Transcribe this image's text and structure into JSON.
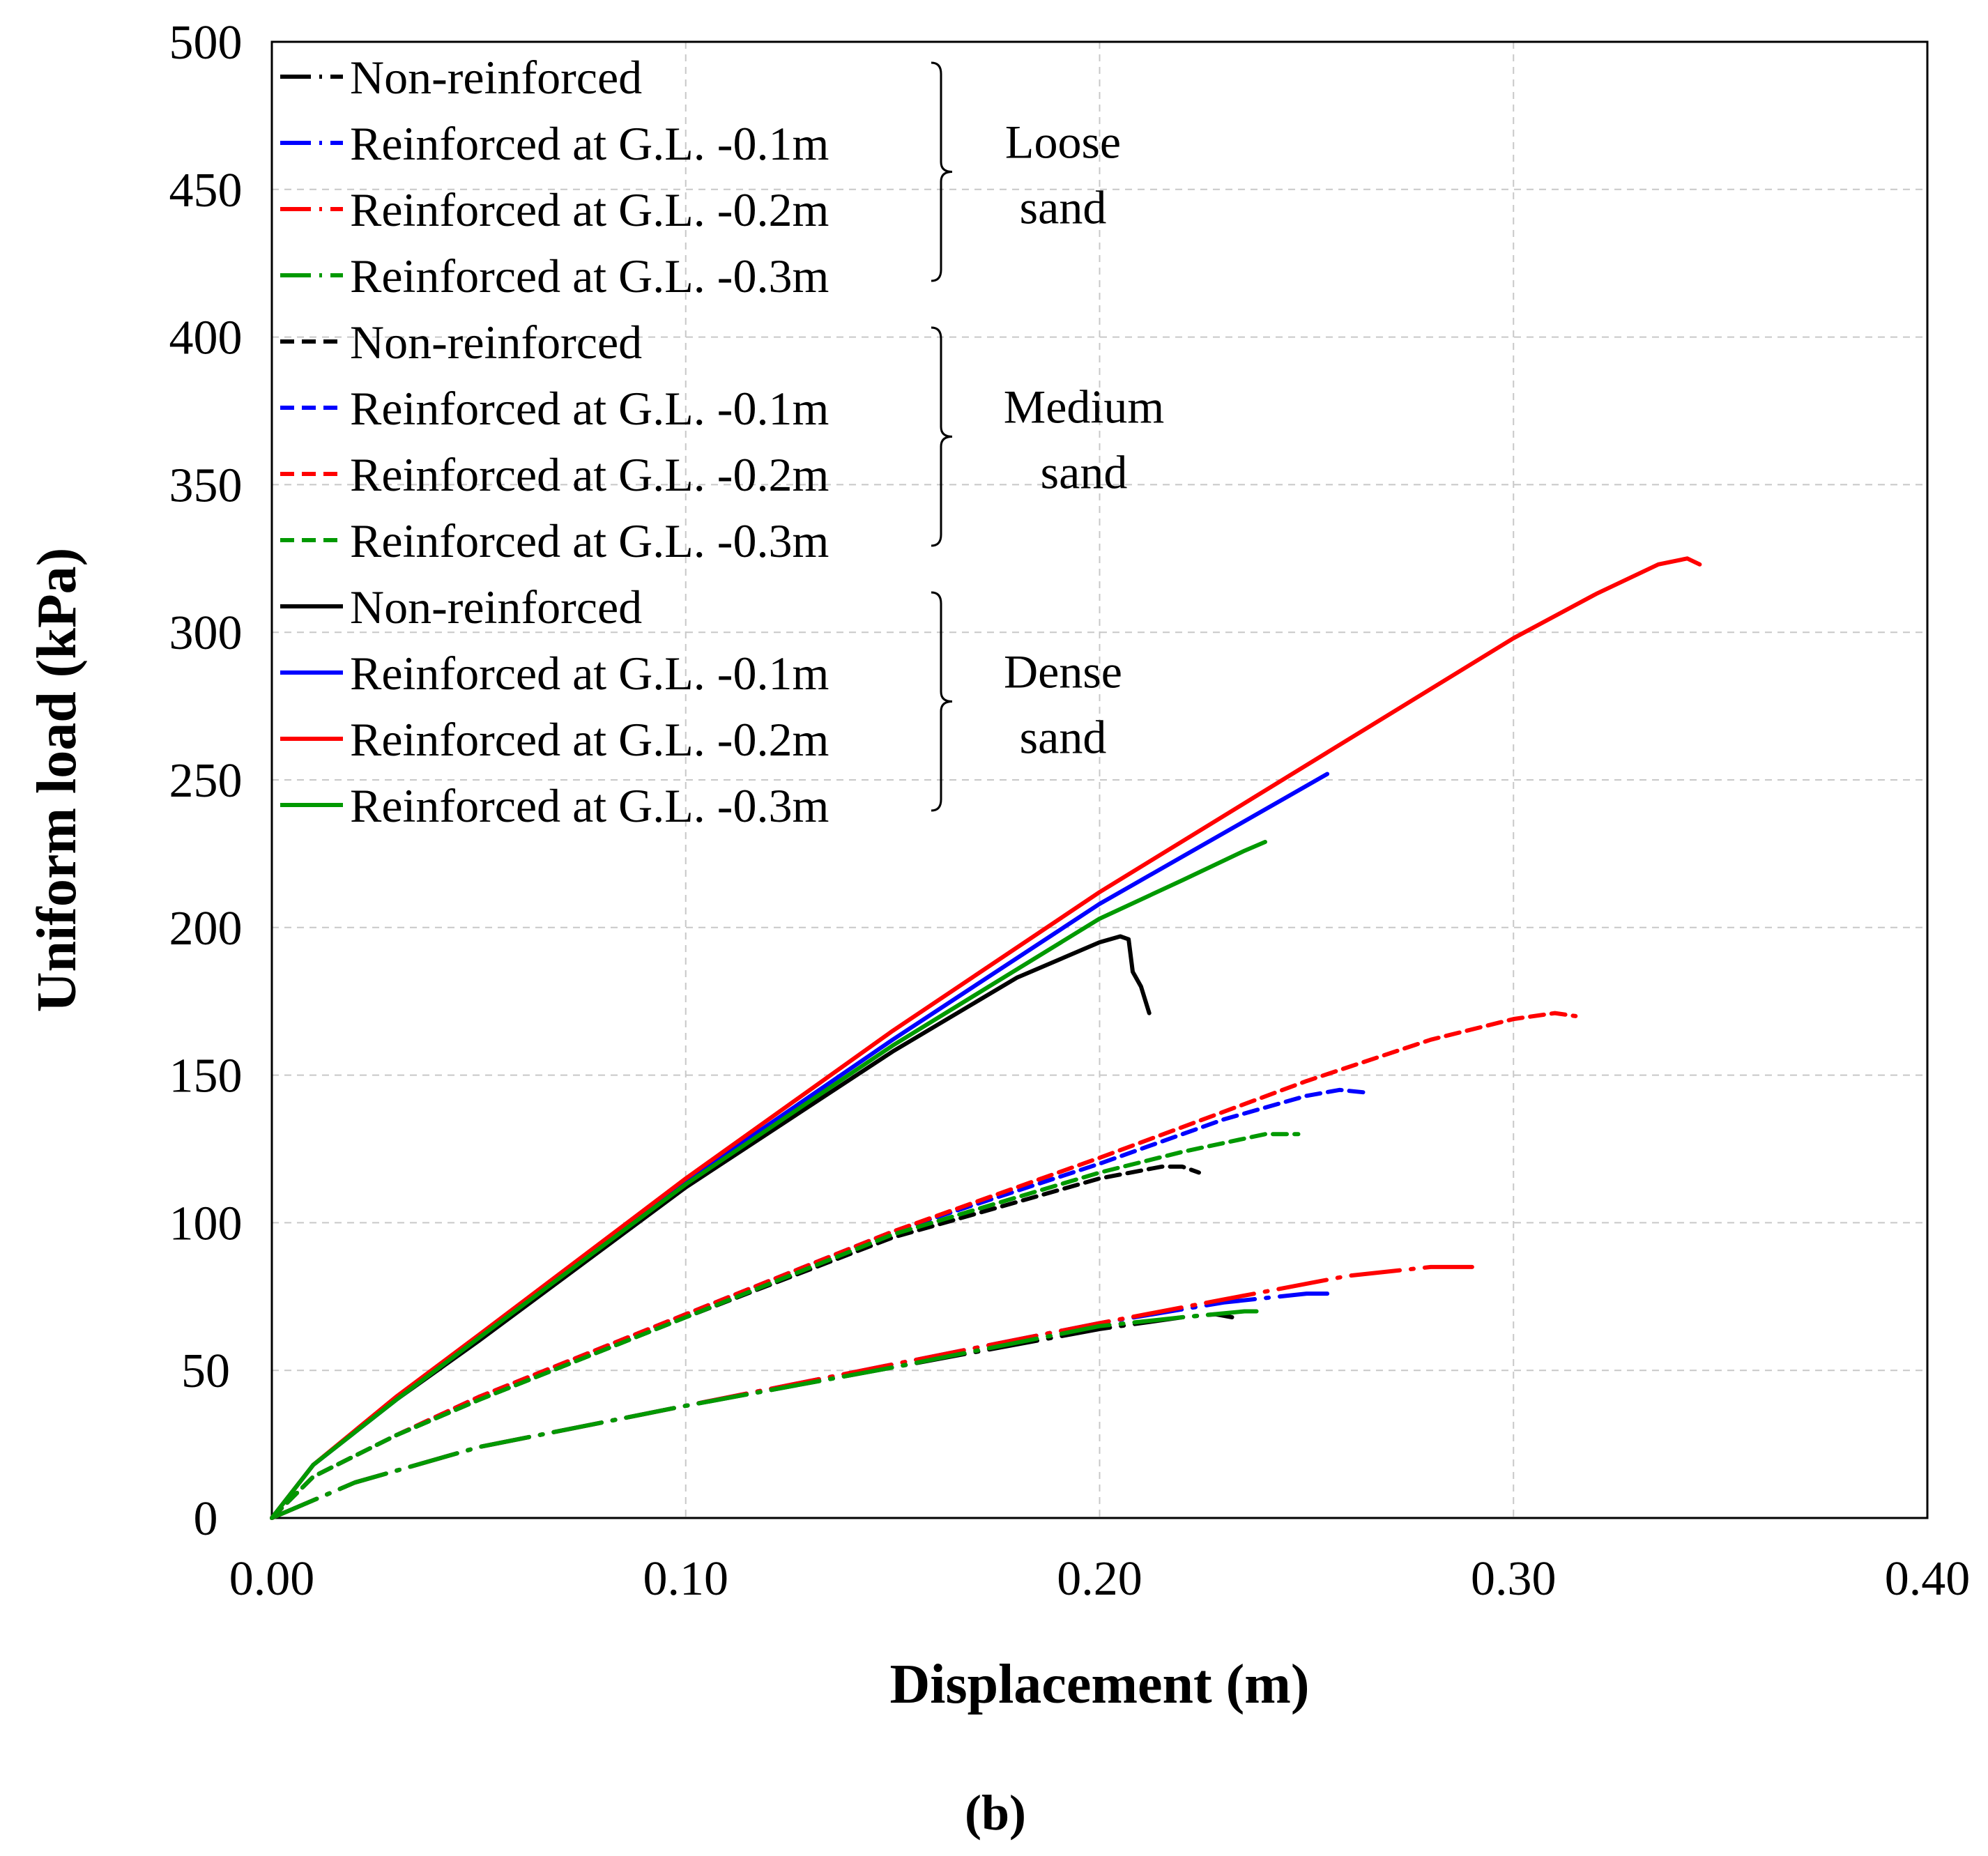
{
  "chart_data": {
    "type": "line",
    "title": "",
    "xlabel": "Displacement (m)",
    "ylabel": "Uniform load (kPa)",
    "xlim": [
      0,
      0.4
    ],
    "ylim": [
      0,
      500
    ],
    "xticks": [
      "0.00",
      "0.10",
      "0.20",
      "0.30",
      "0.40"
    ],
    "yticks": [
      "0",
      "50",
      "100",
      "150",
      "200",
      "250",
      "300",
      "350",
      "400",
      "450",
      "500"
    ],
    "grid": true,
    "caption": "(b)",
    "groups": [
      {
        "name_line1": "Loose",
        "name_line2": "sand"
      },
      {
        "name_line1": "Medium",
        "name_line2": "sand"
      },
      {
        "name_line1": "Dense",
        "name_line2": "sand"
      }
    ],
    "series": [
      {
        "name": "Non-reinforced",
        "group": 0,
        "color": "#000000",
        "style": "dashdot",
        "points": [
          [
            0,
            0
          ],
          [
            0.02,
            12
          ],
          [
            0.05,
            24
          ],
          [
            0.1,
            38
          ],
          [
            0.15,
            51
          ],
          [
            0.2,
            64
          ],
          [
            0.22,
            68
          ],
          [
            0.228,
            69
          ],
          [
            0.232,
            68
          ]
        ]
      },
      {
        "name": "Reinforced at G.L. -0.1m",
        "group": 0,
        "color": "#0000ff",
        "style": "dashdot",
        "points": [
          [
            0,
            0
          ],
          [
            0.02,
            12
          ],
          [
            0.05,
            24
          ],
          [
            0.1,
            38
          ],
          [
            0.15,
            52
          ],
          [
            0.2,
            66
          ],
          [
            0.23,
            73
          ],
          [
            0.25,
            76
          ],
          [
            0.255,
            76
          ]
        ]
      },
      {
        "name": "Reinforced at G.L. -0.2m",
        "group": 0,
        "color": "#ff0000",
        "style": "dashdot",
        "points": [
          [
            0,
            0
          ],
          [
            0.02,
            12
          ],
          [
            0.05,
            24
          ],
          [
            0.1,
            38
          ],
          [
            0.15,
            52
          ],
          [
            0.2,
            66
          ],
          [
            0.23,
            74
          ],
          [
            0.26,
            82
          ],
          [
            0.28,
            85
          ],
          [
            0.29,
            85
          ]
        ]
      },
      {
        "name": "Reinforced at G.L. -0.3m",
        "group": 0,
        "color": "#009900",
        "style": "dashdot",
        "points": [
          [
            0,
            0
          ],
          [
            0.02,
            12
          ],
          [
            0.05,
            24
          ],
          [
            0.1,
            38
          ],
          [
            0.15,
            51
          ],
          [
            0.2,
            65
          ],
          [
            0.22,
            68
          ],
          [
            0.235,
            70
          ],
          [
            0.24,
            70
          ]
        ]
      },
      {
        "name": "Non-reinforced",
        "group": 1,
        "color": "#000000",
        "style": "dashed",
        "points": [
          [
            0,
            0
          ],
          [
            0.01,
            14
          ],
          [
            0.03,
            28
          ],
          [
            0.05,
            40
          ],
          [
            0.1,
            68
          ],
          [
            0.15,
            95
          ],
          [
            0.2,
            115
          ],
          [
            0.215,
            119
          ],
          [
            0.22,
            119
          ],
          [
            0.224,
            117
          ]
        ]
      },
      {
        "name": "Reinforced at G.L. -0.1m",
        "group": 1,
        "color": "#0000ff",
        "style": "dashed",
        "points": [
          [
            0,
            0
          ],
          [
            0.01,
            14
          ],
          [
            0.03,
            28
          ],
          [
            0.05,
            41
          ],
          [
            0.1,
            69
          ],
          [
            0.15,
            97
          ],
          [
            0.2,
            120
          ],
          [
            0.23,
            135
          ],
          [
            0.25,
            143
          ],
          [
            0.258,
            145
          ],
          [
            0.265,
            144
          ]
        ]
      },
      {
        "name": "Reinforced at G.L. -0.2m",
        "group": 1,
        "color": "#ff0000",
        "style": "dashed",
        "points": [
          [
            0,
            0
          ],
          [
            0.01,
            14
          ],
          [
            0.03,
            28
          ],
          [
            0.05,
            41
          ],
          [
            0.1,
            69
          ],
          [
            0.15,
            97
          ],
          [
            0.2,
            122
          ],
          [
            0.25,
            148
          ],
          [
            0.28,
            162
          ],
          [
            0.3,
            169
          ],
          [
            0.31,
            171
          ],
          [
            0.315,
            170
          ]
        ]
      },
      {
        "name": "Reinforced at G.L. -0.3m",
        "group": 1,
        "color": "#009900",
        "style": "dashed",
        "points": [
          [
            0,
            0
          ],
          [
            0.01,
            14
          ],
          [
            0.03,
            28
          ],
          [
            0.05,
            40
          ],
          [
            0.1,
            68
          ],
          [
            0.15,
            96
          ],
          [
            0.2,
            117
          ],
          [
            0.22,
            124
          ],
          [
            0.24,
            130
          ],
          [
            0.248,
            130
          ]
        ]
      },
      {
        "name": "Non-reinforced",
        "group": 2,
        "color": "#000000",
        "style": "solid",
        "points": [
          [
            0,
            0
          ],
          [
            0.01,
            18
          ],
          [
            0.03,
            40
          ],
          [
            0.05,
            60
          ],
          [
            0.1,
            112
          ],
          [
            0.15,
            158
          ],
          [
            0.18,
            183
          ],
          [
            0.2,
            195
          ],
          [
            0.205,
            197
          ],
          [
            0.207,
            196
          ],
          [
            0.208,
            185
          ],
          [
            0.21,
            180
          ],
          [
            0.212,
            171
          ]
        ]
      },
      {
        "name": "Reinforced at G.L. -0.1m",
        "group": 2,
        "color": "#0000ff",
        "style": "solid",
        "points": [
          [
            0,
            0
          ],
          [
            0.01,
            18
          ],
          [
            0.03,
            40
          ],
          [
            0.05,
            61
          ],
          [
            0.1,
            114
          ],
          [
            0.15,
            162
          ],
          [
            0.2,
            208
          ],
          [
            0.22,
            224
          ],
          [
            0.24,
            240
          ],
          [
            0.255,
            252
          ]
        ]
      },
      {
        "name": "Reinforced at G.L. -0.2m",
        "group": 2,
        "color": "#ff0000",
        "style": "solid",
        "points": [
          [
            0,
            0
          ],
          [
            0.01,
            18
          ],
          [
            0.03,
            41
          ],
          [
            0.05,
            62
          ],
          [
            0.1,
            115
          ],
          [
            0.15,
            165
          ],
          [
            0.2,
            212
          ],
          [
            0.25,
            255
          ],
          [
            0.3,
            298
          ],
          [
            0.32,
            313
          ],
          [
            0.335,
            323
          ],
          [
            0.342,
            325
          ],
          [
            0.345,
            323
          ]
        ]
      },
      {
        "name": "Reinforced at G.L. -0.3m",
        "group": 2,
        "color": "#009900",
        "style": "solid",
        "points": [
          [
            0,
            0
          ],
          [
            0.01,
            18
          ],
          [
            0.03,
            40
          ],
          [
            0.05,
            61
          ],
          [
            0.1,
            113
          ],
          [
            0.15,
            160
          ],
          [
            0.2,
            203
          ],
          [
            0.22,
            216
          ],
          [
            0.235,
            226
          ],
          [
            0.24,
            229
          ]
        ]
      }
    ]
  }
}
